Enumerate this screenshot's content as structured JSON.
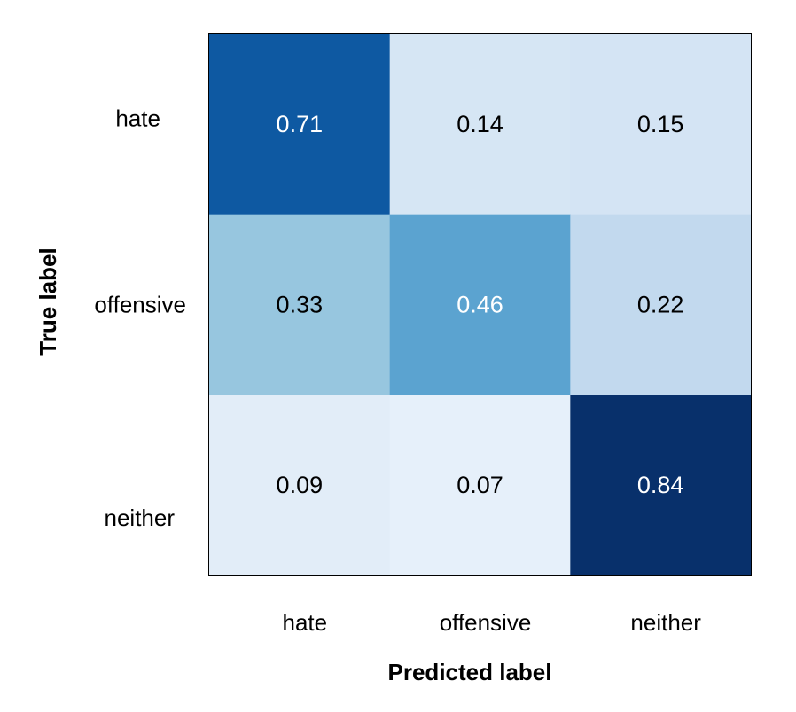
{
  "chart_data": {
    "type": "heatmap",
    "title": "",
    "xlabel": "Predicted label",
    "ylabel": "True label",
    "x_categories": [
      "hate",
      "offensive",
      "neither"
    ],
    "y_categories": [
      "hate",
      "offensive",
      "neither"
    ],
    "values": [
      [
        0.71,
        0.14,
        0.15
      ],
      [
        0.33,
        0.46,
        0.22
      ],
      [
        0.09,
        0.07,
        0.84
      ]
    ],
    "value_labels": [
      [
        "0.71",
        "0.14",
        "0.15"
      ],
      [
        "0.33",
        "0.46",
        "0.22"
      ],
      [
        "0.09",
        "0.07",
        "0.84"
      ]
    ],
    "colormap": "Blues",
    "color_range": [
      0,
      0.84
    ],
    "colors": {
      "low": "#f7fbff",
      "high": "#08306b",
      "text_dark": "#000000",
      "text_light": "#ffffff"
    },
    "grid": false,
    "legend": "none"
  }
}
